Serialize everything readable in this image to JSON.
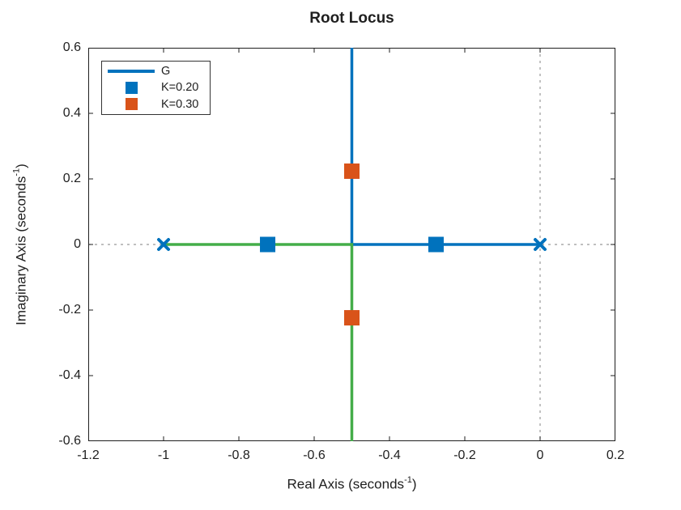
{
  "page": {
    "title": "Root Locus"
  },
  "chart_data": {
    "type": "line",
    "subtype": "root-locus",
    "title": "Root Locus",
    "xlabel": {
      "pre": "Real Axis (seconds",
      "sup": "-1",
      "post": ")"
    },
    "ylabel": {
      "pre": "Imaginary Axis (seconds",
      "sup": "-1",
      "post": ")"
    },
    "xlim": [
      -1.2,
      0.2
    ],
    "ylim": [
      -0.6,
      0.6
    ],
    "x_ticks": [
      -1.2,
      -1,
      -0.8,
      -0.6,
      -0.4,
      -0.2,
      0,
      0.2
    ],
    "x_tick_labels": [
      "-1.2",
      "-1",
      "-0.8",
      "-0.6",
      "-0.4",
      "-0.2",
      "0",
      "0.2"
    ],
    "y_ticks": [
      0.6,
      0.4,
      0.2,
      0,
      -0.2,
      -0.4,
      -0.6
    ],
    "y_tick_labels": [
      "0.6",
      "0.4",
      "0.2",
      "0",
      "-0.2",
      "-0.4",
      "-0.6"
    ],
    "grid": "dotted-zero-axes-only",
    "legend": {
      "position": "top-left",
      "entries": [
        {
          "label": "G",
          "swatch": "line",
          "color": "#0072BD"
        },
        {
          "label": "K=0.20",
          "swatch": "square",
          "color": "#0072BD"
        },
        {
          "label": "K=0.30",
          "swatch": "square",
          "color": "#D95319"
        }
      ]
    },
    "series": [
      {
        "name": "G-branch-1",
        "color": "#0072BD",
        "points": [
          [
            0,
            0
          ],
          [
            -0.5,
            0
          ],
          [
            -0.5,
            0.6
          ]
        ]
      },
      {
        "name": "G-branch-2",
        "color": "#44AD49",
        "points": [
          [
            -1,
            0
          ],
          [
            -0.5,
            0
          ],
          [
            -0.5,
            -0.6
          ]
        ]
      }
    ],
    "open_loop_poles": {
      "marker": "x",
      "color": "#0072BD",
      "points": [
        [
          -1,
          0
        ],
        [
          0,
          0
        ]
      ]
    },
    "gain_markers": [
      {
        "label": "K=0.20",
        "color": "#0072BD",
        "points": [
          [
            -0.7236,
            0
          ],
          [
            -0.2764,
            0
          ]
        ]
      },
      {
        "label": "K=0.30",
        "color": "#D95319",
        "points": [
          [
            -0.5,
            0.2236
          ],
          [
            -0.5,
            -0.2236
          ]
        ]
      }
    ],
    "colors": {
      "axis": "#1f1f1f",
      "zero_line": "#999999",
      "background": "#ffffff"
    }
  }
}
